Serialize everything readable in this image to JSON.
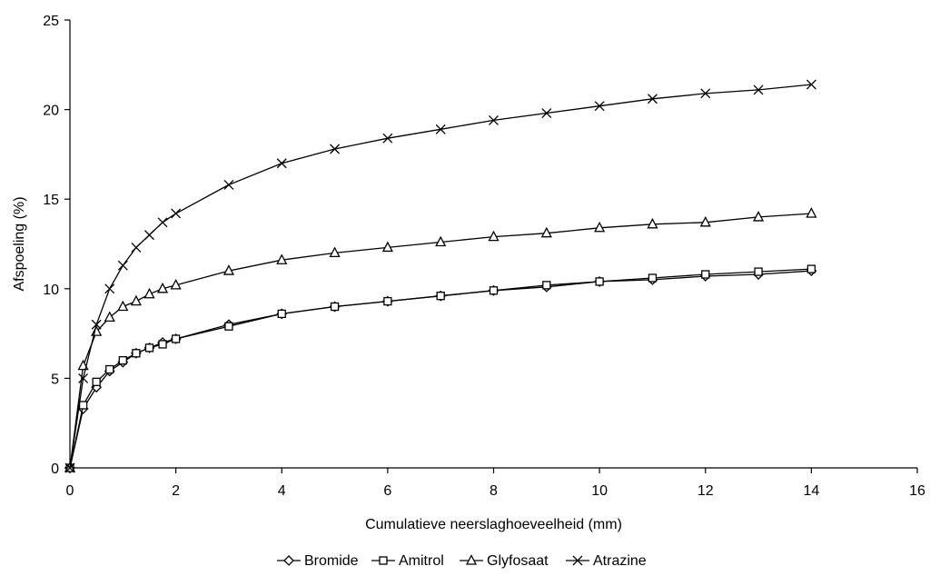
{
  "chart_data": {
    "type": "line",
    "title": "",
    "xlabel": "Cumulatieve neerslaghoeveelheid (mm)",
    "ylabel": "Afspoeling (%)",
    "xlim": [
      0,
      16
    ],
    "ylim": [
      0,
      25
    ],
    "xticks": [
      0,
      2,
      4,
      6,
      8,
      10,
      12,
      14,
      16
    ],
    "yticks": [
      0,
      5,
      10,
      15,
      20,
      25
    ],
    "grid": false,
    "legend_position": "bottom",
    "line_color": "#000000",
    "series": [
      {
        "name": "Bromide",
        "marker": "diamond",
        "x": [
          0,
          0.25,
          0.5,
          0.75,
          1,
          1.25,
          1.5,
          1.75,
          2,
          3,
          4,
          5,
          6,
          7,
          8,
          9,
          10,
          11,
          12,
          13,
          14
        ],
        "y": [
          0,
          3.3,
          4.5,
          5.4,
          5.9,
          6.4,
          6.7,
          7.0,
          7.2,
          8.0,
          8.6,
          9.0,
          9.3,
          9.6,
          9.9,
          10.1,
          10.4,
          10.5,
          10.7,
          10.8,
          11.0
        ]
      },
      {
        "name": "Amitrol",
        "marker": "square",
        "x": [
          0,
          0.25,
          0.5,
          0.75,
          1,
          1.25,
          1.5,
          1.75,
          2,
          3,
          4,
          5,
          6,
          7,
          8,
          9,
          10,
          11,
          12,
          13,
          14
        ],
        "y": [
          0,
          3.5,
          4.8,
          5.5,
          6.0,
          6.4,
          6.7,
          6.9,
          7.2,
          7.9,
          8.6,
          9.0,
          9.3,
          9.6,
          9.9,
          10.2,
          10.4,
          10.6,
          10.8,
          10.95,
          11.1
        ]
      },
      {
        "name": "Glyfosaat",
        "marker": "triangle",
        "x": [
          0,
          0.25,
          0.5,
          0.75,
          1,
          1.25,
          1.5,
          1.75,
          2,
          3,
          4,
          5,
          6,
          7,
          8,
          9,
          10,
          11,
          12,
          13,
          14
        ],
        "y": [
          0,
          5.7,
          7.6,
          8.4,
          9.0,
          9.3,
          9.7,
          10.0,
          10.2,
          11.0,
          11.6,
          12.0,
          12.3,
          12.6,
          12.9,
          13.1,
          13.4,
          13.6,
          13.7,
          14.0,
          14.2
        ]
      },
      {
        "name": "Atrazine",
        "marker": "x",
        "x": [
          0,
          0.25,
          0.5,
          0.75,
          1,
          1.25,
          1.5,
          1.75,
          2,
          3,
          4,
          5,
          6,
          7,
          8,
          9,
          10,
          11,
          12,
          13,
          14
        ],
        "y": [
          0,
          5.0,
          8.0,
          10.0,
          11.3,
          12.3,
          13.0,
          13.7,
          14.2,
          15.8,
          17.0,
          17.8,
          18.4,
          18.9,
          19.4,
          19.8,
          20.2,
          20.6,
          20.9,
          21.1,
          21.4
        ]
      }
    ]
  }
}
